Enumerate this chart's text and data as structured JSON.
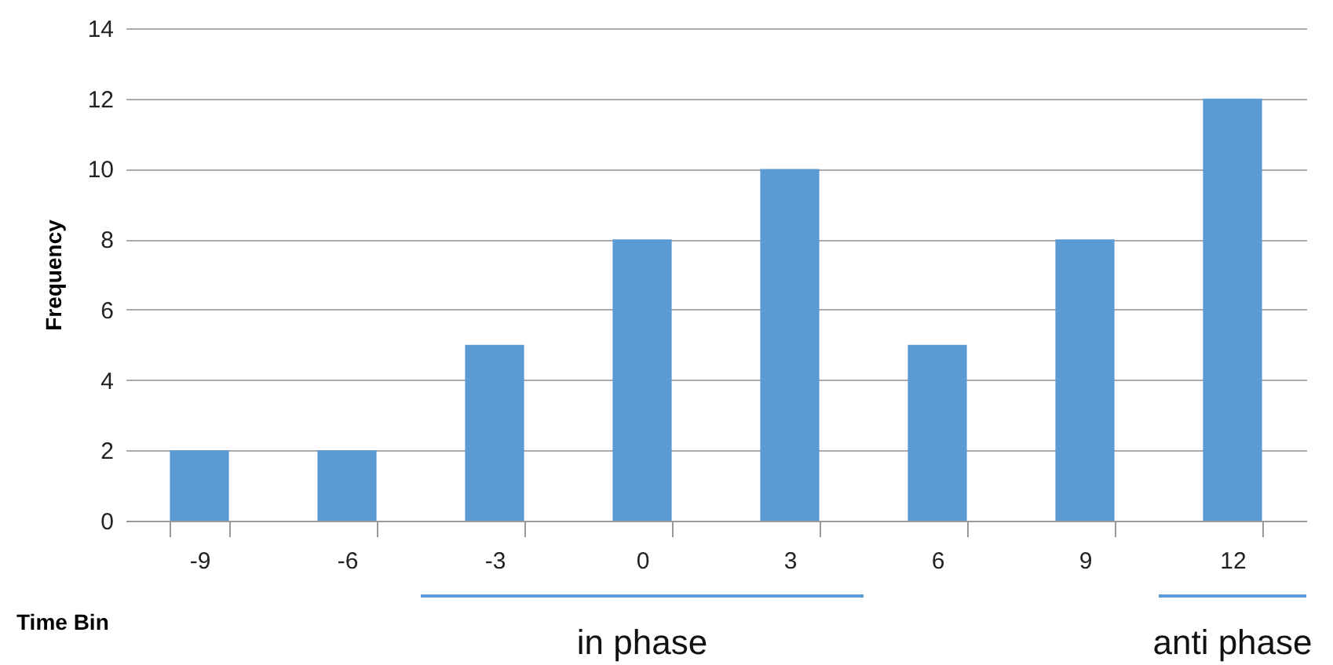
{
  "chart_data": {
    "type": "bar",
    "xlabel": "Time Bin",
    "ylabel": "Frequency",
    "categories": [
      "-9",
      "-6",
      "-3",
      "0",
      "3",
      "6",
      "9",
      "12"
    ],
    "values": [
      2,
      2,
      5,
      8,
      10,
      5,
      8,
      12
    ],
    "color": "#5b9bd5",
    "ylim": [
      0,
      14
    ],
    "yticks": [
      0,
      2,
      4,
      6,
      8,
      10,
      12,
      14
    ],
    "grid": "y",
    "annotations": [
      "in phase",
      "anti phase"
    ]
  }
}
